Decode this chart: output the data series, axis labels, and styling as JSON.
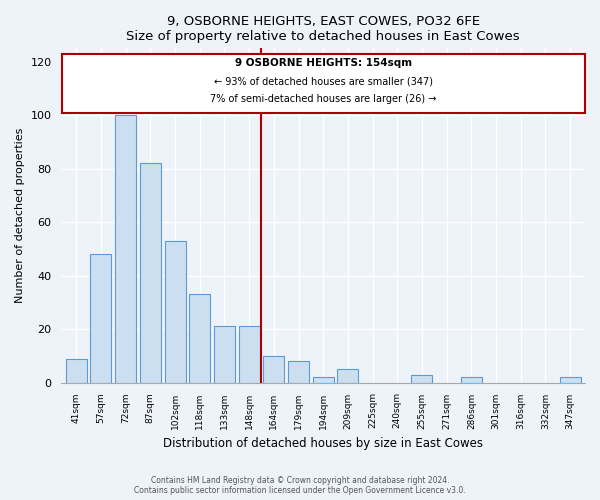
{
  "title": "9, OSBORNE HEIGHTS, EAST COWES, PO32 6FE",
  "subtitle": "Size of property relative to detached houses in East Cowes",
  "xlabel": "Distribution of detached houses by size in East Cowes",
  "ylabel": "Number of detached properties",
  "bar_labels": [
    "41sqm",
    "57sqm",
    "72sqm",
    "87sqm",
    "102sqm",
    "118sqm",
    "133sqm",
    "148sqm",
    "164sqm",
    "179sqm",
    "194sqm",
    "209sqm",
    "225sqm",
    "240sqm",
    "255sqm",
    "271sqm",
    "286sqm",
    "301sqm",
    "316sqm",
    "332sqm",
    "347sqm"
  ],
  "bar_values": [
    9,
    48,
    100,
    82,
    53,
    33,
    21,
    21,
    10,
    8,
    2,
    5,
    0,
    0,
    3,
    0,
    2,
    0,
    0,
    0,
    2
  ],
  "bar_color": "#ccdff0",
  "bar_edge_color": "#5b9bd5",
  "reference_line_index": 7.5,
  "reference_line_label": "9 OSBORNE HEIGHTS: 154sqm",
  "annotation_line1": "← 93% of detached houses are smaller (347)",
  "annotation_line2": "7% of semi-detached houses are larger (26) →",
  "annotation_box_edge": "#aa0000",
  "reference_line_color": "#aa0000",
  "ylim": [
    0,
    125
  ],
  "yticks": [
    0,
    20,
    40,
    60,
    80,
    100,
    120
  ],
  "footer_line1": "Contains HM Land Registry data © Crown copyright and database right 2024.",
  "footer_line2": "Contains public sector information licensed under the Open Government Licence v3.0.",
  "bg_color": "#eef2f9",
  "plot_bg_color": "#eef2f9"
}
